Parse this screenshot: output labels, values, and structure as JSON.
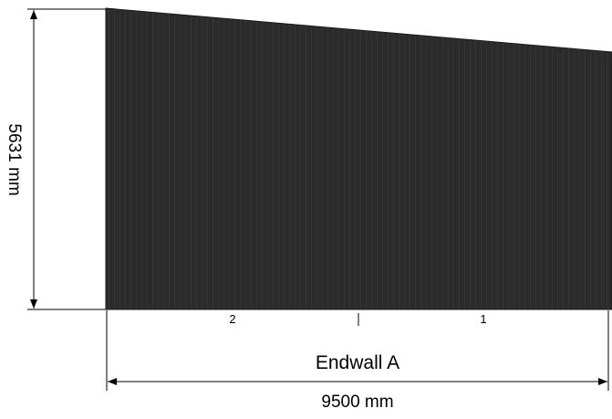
{
  "drawing": {
    "height_dimension": "5631 mm",
    "width_dimension": "9500 mm",
    "wall_name": "Endwall A",
    "bay_labels": [
      "2",
      "1"
    ]
  },
  "colors": {
    "panel_fill": "#2b2b2b",
    "line": "#000000",
    "background": "#ffffff"
  }
}
